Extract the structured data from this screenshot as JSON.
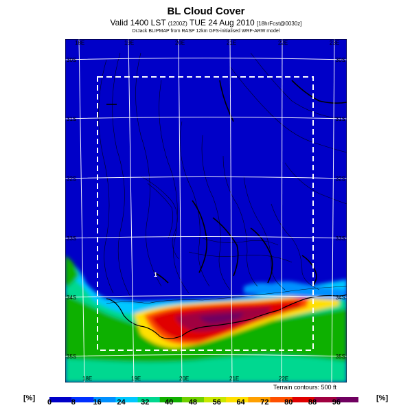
{
  "header": {
    "title": "BL Cloud Cover",
    "subtitle_main": "Valid 1400 LST",
    "subtitle_code": "(1200Z)",
    "subtitle_date": "TUE 24 Aug 2010",
    "subtitle_fcst": "[18hrFcst@0030z]",
    "credit": "DrJack BLIPMAP from RASP 12km GFS-initialised WRF-ARW model"
  },
  "map": {
    "lon_top": [
      "18E",
      "19E",
      "20E",
      "21E",
      "22E",
      "23E"
    ],
    "lon_bottom": [
      "18E",
      "19E",
      "20E",
      "21E",
      "22E"
    ],
    "lat_left": [
      "30S",
      "31S",
      "32S",
      "33S",
      "34S",
      "35S"
    ],
    "lat_right": [
      "30S",
      "31S",
      "32S",
      "33S",
      "34S",
      "35S"
    ],
    "terrain_note": "Terrain contours: 500 ft",
    "marker": "1"
  },
  "colorbar": {
    "unit": "[%]",
    "ticks": [
      "0",
      "8",
      "16",
      "24",
      "32",
      "40",
      "48",
      "56",
      "64",
      "72",
      "80",
      "88",
      "96"
    ],
    "colors": [
      "#0000c8",
      "#0030ff",
      "#0090ff",
      "#00c8ff",
      "#00d890",
      "#10b000",
      "#70d000",
      "#c8e800",
      "#ffe000",
      "#ffa000",
      "#ff5000",
      "#e00000",
      "#a00040",
      "#700060"
    ]
  }
}
